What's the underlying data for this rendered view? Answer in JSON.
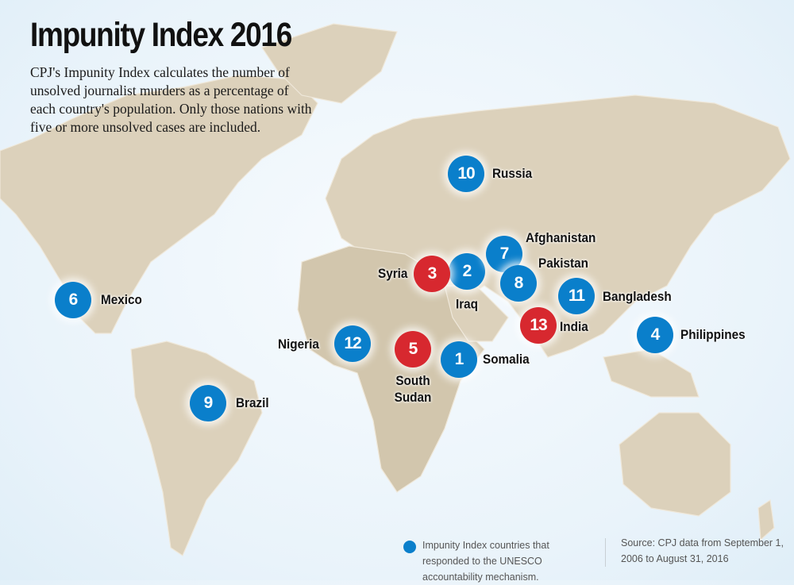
{
  "title": "Impunity Index 2016",
  "intro": "CPJ's Impunity Index calculates the number of unsolved journalist murders as a percentage of each country's population. Only those nations with five or more unsolved cases are included.",
  "colors": {
    "responded": "#0a7fcb",
    "not_responded": "#d7282f",
    "land": "#dcd1bb",
    "ocean": "#eef6fb"
  },
  "markers": [
    {
      "rank": "1",
      "country": "Somalia",
      "responded": true
    },
    {
      "rank": "2",
      "country": "Iraq",
      "responded": true
    },
    {
      "rank": "3",
      "country": "Syria",
      "responded": false
    },
    {
      "rank": "4",
      "country": "Philippines",
      "responded": true
    },
    {
      "rank": "5",
      "country": "South Sudan",
      "responded": false
    },
    {
      "rank": "6",
      "country": "Mexico",
      "responded": true
    },
    {
      "rank": "7",
      "country": "Afghanistan",
      "responded": true
    },
    {
      "rank": "8",
      "country": "Pakistan",
      "responded": true
    },
    {
      "rank": "9",
      "country": "Brazil",
      "responded": true
    },
    {
      "rank": "10",
      "country": "Russia",
      "responded": true
    },
    {
      "rank": "11",
      "country": "Bangladesh",
      "responded": true
    },
    {
      "rank": "12",
      "country": "Nigeria",
      "responded": true
    },
    {
      "rank": "13",
      "country": "India",
      "responded": false
    }
  ],
  "legend": {
    "label": "Impunity Index countries that responded to the UNESCO accountability mechanism."
  },
  "source": "Source: CPJ data from September 1, 2006 to August 31, 2016"
}
